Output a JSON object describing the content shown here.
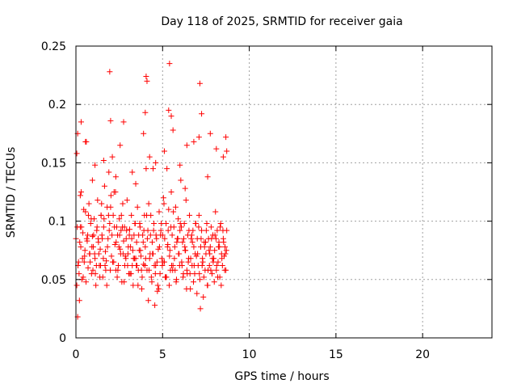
{
  "colors": {
    "marker": "#ff0000",
    "grid": "#a0a0a0",
    "frame": "#000000",
    "background": "#ffffff"
  },
  "chart_data": {
    "type": "scatter",
    "title": "Day 118 of 2025, SRMTID for receiver gaia",
    "xlabel": "GPS time / hours",
    "ylabel": "SRMTID / TECUs",
    "xlim": [
      0,
      24
    ],
    "ylim": [
      0,
      0.25
    ],
    "xticks": [
      0,
      5,
      10,
      15,
      20
    ],
    "xtick_labels": [
      "0",
      "5",
      "10",
      "15",
      "20"
    ],
    "yticks": [
      0,
      0.05,
      0.1,
      0.15,
      0.2,
      0.25
    ],
    "ytick_labels": [
      "0",
      "0.05",
      "0.1",
      "0.15",
      "0.2",
      "0.25"
    ],
    "grid": true,
    "marker": "plus",
    "series": [
      {
        "x": [
          0.0,
          0.05,
          0.1,
          0.15,
          0.2,
          0.25,
          0.3,
          0.35,
          0.4,
          0.45,
          0.5,
          0.55,
          0.6,
          0.65,
          0.7,
          0.75,
          0.8,
          0.85,
          0.9,
          0.95,
          1.0,
          1.05,
          1.1,
          1.15,
          1.2,
          1.25,
          1.3,
          1.35,
          1.4,
          1.45,
          1.5,
          1.55,
          1.6,
          1.65,
          1.7,
          1.75,
          1.8,
          1.85,
          1.9,
          1.95,
          2.0,
          2.05,
          2.1,
          2.15,
          2.2,
          2.25,
          2.3,
          2.35,
          2.4,
          2.45,
          2.5,
          2.55,
          2.6,
          2.65,
          2.7,
          2.75,
          2.8,
          2.85,
          2.9,
          2.95,
          3.0,
          3.05,
          3.1,
          3.15,
          3.2,
          3.25,
          3.3,
          3.35,
          3.4,
          3.45,
          3.5,
          3.55,
          3.6,
          3.65,
          3.7,
          3.75,
          3.8,
          3.85,
          3.9,
          3.95,
          4.0,
          4.05,
          4.1,
          4.15,
          4.2,
          4.25,
          4.3,
          4.35,
          4.4,
          4.45,
          4.5,
          4.55,
          4.6,
          4.65,
          4.7,
          4.75,
          4.8,
          4.85,
          4.9,
          4.95,
          5.0,
          5.05,
          5.1,
          5.15,
          5.2,
          5.25,
          5.3,
          5.35,
          5.4,
          5.45,
          5.5,
          5.55,
          5.6,
          5.65,
          5.7,
          5.75,
          5.8,
          5.85,
          5.9,
          5.95,
          6.0,
          6.05,
          6.1,
          6.15,
          6.2,
          6.25,
          6.3,
          6.35,
          6.4,
          6.45,
          6.5,
          6.55,
          6.6,
          6.65,
          6.7,
          6.75,
          6.8,
          6.85,
          6.9,
          6.95,
          7.0,
          7.05,
          7.1,
          7.15,
          7.2,
          7.25,
          7.3,
          7.35,
          7.4,
          7.45,
          7.5,
          7.55,
          7.6,
          7.65,
          7.7,
          7.75,
          7.8,
          7.85,
          7.9,
          7.95,
          8.0,
          8.05,
          8.1,
          8.15,
          8.2,
          8.25,
          8.3,
          8.35,
          8.4,
          8.45,
          8.5,
          8.55,
          8.6,
          8.65,
          8.7,
          0.05,
          0.12,
          0.22,
          0.32,
          0.42,
          0.52,
          0.62,
          0.72,
          0.82,
          0.92,
          1.02,
          1.12,
          1.22,
          1.32,
          1.42,
          1.52,
          1.62,
          1.72,
          1.82,
          1.92,
          2.02,
          2.12,
          2.22,
          2.32,
          2.42,
          2.52,
          2.62,
          2.72,
          2.82,
          2.92,
          3.02,
          3.12,
          3.22,
          3.32,
          3.42,
          3.52,
          3.62,
          3.72,
          3.82,
          3.92,
          4.02,
          4.12,
          4.22,
          4.32,
          4.42,
          4.52,
          4.62,
          4.72,
          4.82,
          4.92,
          5.02,
          5.12,
          5.22,
          5.32,
          5.42,
          5.52,
          5.62,
          5.72,
          5.82,
          5.92,
          6.02,
          6.12,
          6.22,
          6.32,
          6.42,
          6.52,
          6.62,
          6.72,
          6.82,
          6.92,
          7.02,
          7.12,
          7.22,
          7.32,
          7.42,
          7.52,
          7.62,
          7.72,
          7.82,
          7.92,
          8.02,
          8.12,
          8.22,
          8.32,
          8.42,
          8.52,
          8.62,
          0.08,
          0.28,
          0.48,
          0.68,
          0.88,
          1.08,
          1.28,
          1.48,
          1.68,
          1.88,
          2.08,
          2.28,
          2.48,
          2.68,
          2.88,
          3.08,
          3.28,
          3.48,
          3.68,
          3.88,
          4.08,
          4.28,
          4.48,
          4.68,
          4.88,
          5.08,
          5.28,
          5.48,
          5.68,
          5.88,
          6.08,
          6.28,
          6.48,
          6.68,
          6.88,
          7.08,
          7.28,
          7.48,
          7.68,
          7.88,
          8.08,
          8.28,
          8.48,
          8.68,
          0.18,
          0.38,
          0.58,
          0.78,
          0.98,
          1.18,
          1.38,
          1.58,
          1.78,
          1.98,
          2.18,
          2.38,
          2.58,
          2.78,
          2.98,
          3.18,
          3.38,
          3.58,
          3.78,
          3.98,
          4.18,
          4.38,
          4.58,
          4.78,
          4.98,
          5.18,
          5.38,
          5.58,
          5.78,
          5.98,
          6.18,
          6.38,
          6.58,
          6.78,
          6.98,
          7.18,
          7.38,
          7.58,
          7.78,
          7.98,
          8.18,
          8.38,
          8.58,
          1.95,
          4.05,
          4.1,
          5.4,
          5.35,
          7.15,
          7.25,
          5.5,
          4.0,
          2.0,
          7.75,
          8.65,
          0.1,
          0.3,
          0.55,
          1.1,
          1.6,
          2.3,
          2.75,
          3.25,
          3.9,
          4.25,
          4.6,
          5.1,
          5.6,
          6.0,
          6.4,
          6.8,
          7.1,
          7.6,
          8.1,
          8.5,
          8.7,
          0.25,
          0.95,
          1.45,
          2.55,
          3.45,
          4.45,
          6.3
        ],
        "y": [
          0.085,
          0.158,
          0.175,
          0.065,
          0.032,
          0.095,
          0.125,
          0.05,
          0.09,
          0.11,
          0.07,
          0.108,
          0.168,
          0.083,
          0.06,
          0.115,
          0.072,
          0.098,
          0.055,
          0.087,
          0.078,
          0.102,
          0.068,
          0.045,
          0.092,
          0.118,
          0.082,
          0.062,
          0.076,
          0.105,
          0.088,
          0.052,
          0.095,
          0.13,
          0.074,
          0.066,
          0.112,
          0.085,
          0.142,
          0.098,
          0.112,
          0.07,
          0.155,
          0.105,
          0.125,
          0.08,
          0.058,
          0.095,
          0.088,
          0.062,
          0.102,
          0.076,
          0.092,
          0.048,
          0.115,
          0.083,
          0.095,
          0.07,
          0.085,
          0.118,
          0.072,
          0.055,
          0.093,
          0.078,
          0.105,
          0.062,
          0.045,
          0.088,
          0.098,
          0.068,
          0.082,
          0.112,
          0.058,
          0.075,
          0.095,
          0.07,
          0.042,
          0.088,
          0.063,
          0.105,
          0.078,
          0.145,
          0.058,
          0.092,
          0.115,
          0.068,
          0.088,
          0.052,
          0.082,
          0.072,
          0.098,
          0.028,
          0.062,
          0.085,
          0.04,
          0.076,
          0.108,
          0.055,
          0.092,
          0.068,
          0.088,
          0.12,
          0.065,
          0.052,
          0.098,
          0.145,
          0.08,
          0.11,
          0.07,
          0.058,
          0.125,
          0.088,
          0.062,
          0.095,
          0.078,
          0.112,
          0.05,
          0.085,
          0.102,
          0.072,
          0.092,
          0.135,
          0.065,
          0.082,
          0.055,
          0.098,
          0.075,
          0.118,
          0.058,
          0.088,
          0.068,
          0.105,
          0.042,
          0.085,
          0.062,
          0.092,
          0.078,
          0.055,
          0.098,
          0.07,
          0.085,
          0.062,
          0.105,
          0.05,
          0.078,
          0.092,
          0.068,
          0.035,
          0.082,
          0.058,
          0.072,
          0.098,
          0.045,
          0.085,
          0.062,
          0.078,
          0.095,
          0.055,
          0.088,
          0.068,
          0.075,
          0.108,
          0.058,
          0.092,
          0.065,
          0.082,
          0.052,
          0.098,
          0.072,
          0.062,
          0.085,
          0.07,
          0.078,
          0.058,
          0.092,
          0.045,
          0.062,
          0.082,
          0.095,
          0.052,
          0.075,
          0.085,
          0.105,
          0.065,
          0.078,
          0.088,
          0.055,
          0.095,
          0.072,
          0.062,
          0.085,
          0.102,
          0.058,
          0.078,
          0.092,
          0.122,
          0.065,
          0.095,
          0.082,
          0.058,
          0.088,
          0.105,
          0.072,
          0.062,
          0.092,
          0.078,
          0.055,
          0.085,
          0.068,
          0.098,
          0.062,
          0.088,
          0.075,
          0.052,
          0.092,
          0.068,
          0.085,
          0.058,
          0.105,
          0.072,
          0.062,
          0.088,
          0.045,
          0.078,
          0.098,
          0.065,
          0.085,
          0.052,
          0.092,
          0.075,
          0.062,
          0.108,
          0.058,
          0.082,
          0.072,
          0.098,
          0.062,
          0.085,
          0.075,
          0.055,
          0.092,
          0.068,
          0.082,
          0.062,
          0.098,
          0.072,
          0.055,
          0.085,
          0.065,
          0.078,
          0.092,
          0.058,
          0.072,
          0.085,
          0.065,
          0.088,
          0.062,
          0.078,
          0.095,
          0.068,
          0.082,
          0.072,
          0.095,
          0.078,
          0.065,
          0.088,
          0.102,
          0.072,
          0.085,
          0.115,
          0.062,
          0.105,
          0.088,
          0.125,
          0.078,
          0.095,
          0.068,
          0.088,
          0.075,
          0.062,
          0.098,
          0.082,
          0.105,
          0.072,
          0.092,
          0.065,
          0.088,
          0.115,
          0.078,
          0.095,
          0.068,
          0.085,
          0.095,
          0.078,
          0.065,
          0.088,
          0.072,
          0.095,
          0.062,
          0.082,
          0.075,
          0.068,
          0.085,
          0.078,
          0.092,
          0.075,
          0.055,
          0.068,
          0.048,
          0.072,
          0.058,
          0.062,
          0.052,
          0.068,
          0.045,
          0.058,
          0.065,
          0.052,
          0.072,
          0.048,
          0.062,
          0.055,
          0.068,
          0.045,
          0.058,
          0.062,
          0.032,
          0.048,
          0.055,
          0.042,
          0.062,
          0.052,
          0.045,
          0.058,
          0.048,
          0.062,
          0.052,
          0.042,
          0.055,
          0.048,
          0.038,
          0.025,
          0.052,
          0.045,
          0.058,
          0.048,
          0.052,
          0.045,
          0.058,
          0.228,
          0.224,
          0.22,
          0.235,
          0.195,
          0.218,
          0.192,
          0.19,
          0.193,
          0.186,
          0.175,
          0.172,
          0.018,
          0.185,
          0.168,
          0.148,
          0.152,
          0.138,
          0.185,
          0.142,
          0.175,
          0.155,
          0.15,
          0.16,
          0.178,
          0.148,
          0.165,
          0.168,
          0.172,
          0.138,
          0.162,
          0.155,
          0.16,
          0.122,
          0.135,
          0.105,
          0.165,
          0.132,
          0.145,
          0.128
        ]
      }
    ]
  }
}
